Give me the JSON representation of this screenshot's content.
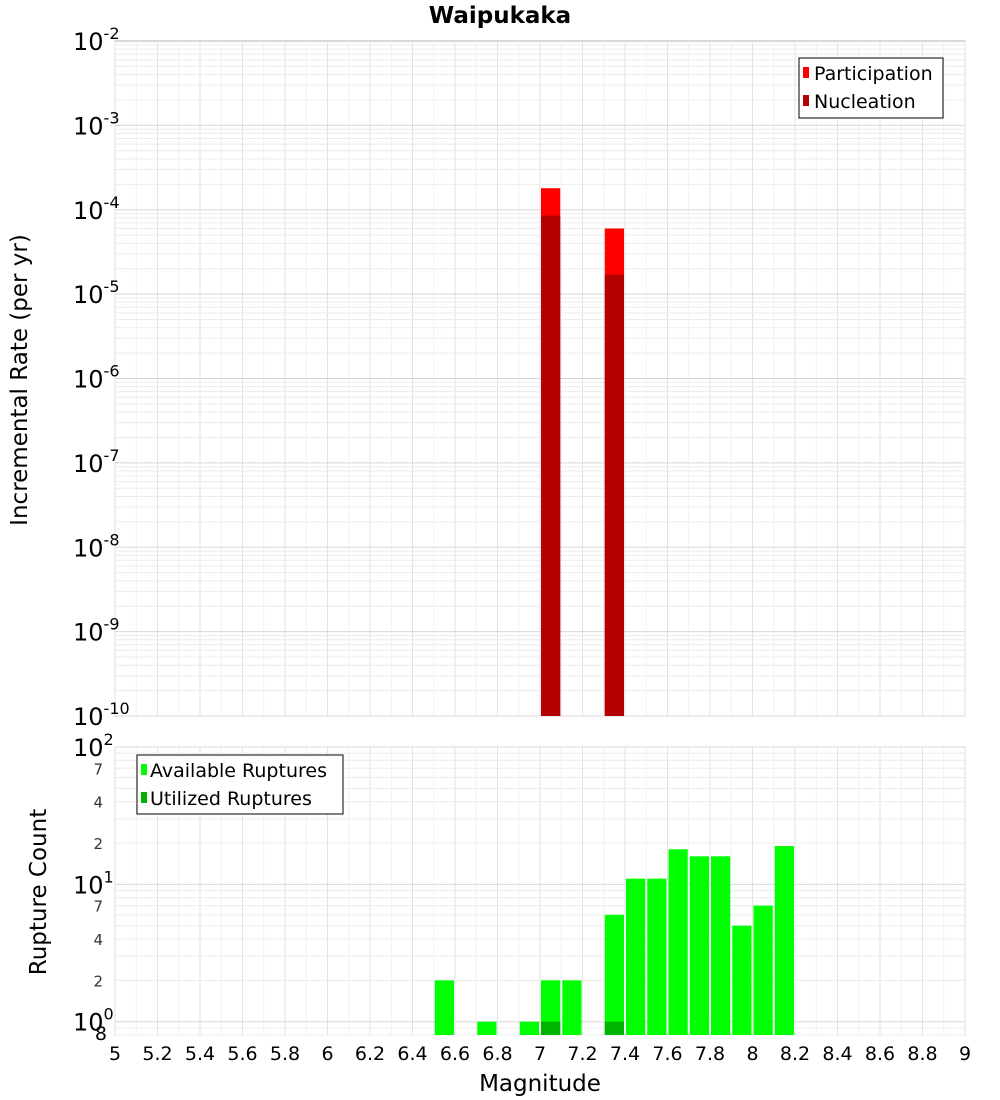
{
  "chart_data": [
    {
      "type": "bar",
      "title": "Waipukaka",
      "xlabel": "",
      "ylabel": "Incremental Rate (per yr)",
      "yscale": "log",
      "ylim": [
        1e-10,
        0.01
      ],
      "xlim": [
        5,
        9
      ],
      "y_tick_labels": [
        "10-10",
        "10-9",
        "10-8",
        "10-7",
        "10-6",
        "10-5",
        "10-4",
        "10-3",
        "10-2"
      ],
      "legend_position": "top-right",
      "series": [
        {
          "name": "Participation",
          "color": "#ff0000",
          "x": [
            7.05,
            7.35
          ],
          "values": [
            0.00018,
            6e-05
          ]
        },
        {
          "name": "Nucleation",
          "color": "#b30000",
          "x": [
            7.05,
            7.35
          ],
          "values": [
            8.5e-05,
            1.7e-05
          ]
        }
      ]
    },
    {
      "type": "bar",
      "title": "",
      "xlabel": "Magnitude",
      "ylabel": "Rupture Count",
      "yscale": "log",
      "ylim": [
        0.8,
        100
      ],
      "xlim": [
        5,
        9
      ],
      "legend_position": "top-left",
      "x_tick_labels": [
        "5",
        "5.2",
        "5.4",
        "5.6",
        "5.8",
        "6",
        "6.2",
        "6.4",
        "6.6",
        "6.8",
        "7",
        "7.2",
        "7.4",
        "7.6",
        "7.8",
        "8",
        "8.2",
        "8.4",
        "8.6",
        "8.8",
        "9"
      ],
      "y_major_labels": [
        {
          "label": "10",
          "exp": "0",
          "value": 1
        },
        {
          "label": "10",
          "exp": "1",
          "value": 10
        },
        {
          "label": "10",
          "exp": "2",
          "value": 100
        }
      ],
      "y_minor_labels": [
        {
          "label": "8",
          "value": 0.8
        },
        {
          "label": "2",
          "value": 2
        },
        {
          "label": "4",
          "value": 4
        },
        {
          "label": "7",
          "value": 7
        },
        {
          "label": "2",
          "value": 20
        },
        {
          "label": "4",
          "value": 40
        },
        {
          "label": "7",
          "value": 70
        }
      ],
      "series": [
        {
          "name": "Available Ruptures",
          "color": "#00ff00",
          "x": [
            6.55,
            6.75,
            6.95,
            7.05,
            7.15,
            7.35,
            7.45,
            7.55,
            7.65,
            7.75,
            7.85,
            7.95,
            8.05,
            8.15
          ],
          "values": [
            2,
            1,
            1,
            2,
            2,
            6,
            11,
            11,
            18,
            16,
            16,
            5,
            7,
            19
          ]
        },
        {
          "name": "Utilized Ruptures",
          "color": "#00b300",
          "x": [
            7.05,
            7.35
          ],
          "values": [
            1,
            1
          ]
        }
      ]
    }
  ]
}
